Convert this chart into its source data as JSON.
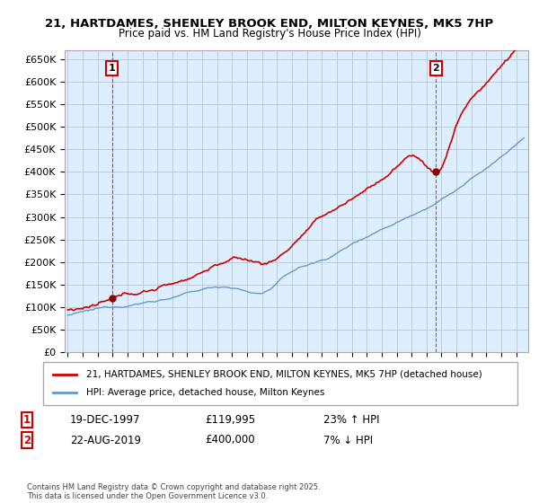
{
  "title1": "21, HARTDAMES, SHENLEY BROOK END, MILTON KEYNES, MK5 7HP",
  "title2": "Price paid vs. HM Land Registry's House Price Index (HPI)",
  "ylabel_ticks": [
    "£0",
    "£50K",
    "£100K",
    "£150K",
    "£200K",
    "£250K",
    "£300K",
    "£350K",
    "£400K",
    "£450K",
    "£500K",
    "£550K",
    "£600K",
    "£650K"
  ],
  "ytick_values": [
    0,
    50000,
    100000,
    150000,
    200000,
    250000,
    300000,
    350000,
    400000,
    450000,
    500000,
    550000,
    600000,
    650000
  ],
  "ylim": [
    0,
    670000
  ],
  "xlim_start": 1994.8,
  "xlim_end": 2025.8,
  "legend_line1": "21, HARTDAMES, SHENLEY BROOK END, MILTON KEYNES, MK5 7HP (detached house)",
  "legend_line2": "HPI: Average price, detached house, Milton Keynes",
  "line_color_red": "#cc0000",
  "line_color_blue": "#6699cc",
  "dashed_color": "#cc0000",
  "plot_bg_color": "#ddeeff",
  "marker1_x": 1997.97,
  "marker1_label": "1",
  "marker2_x": 2019.64,
  "marker2_label": "2",
  "sale1_date": "19-DEC-1997",
  "sale1_price": "£119,995",
  "sale1_hpi": "23% ↑ HPI",
  "sale2_date": "22-AUG-2019",
  "sale2_price": "£400,000",
  "sale2_hpi": "7% ↓ HPI",
  "footnote": "Contains HM Land Registry data © Crown copyright and database right 2025.\nThis data is licensed under the Open Government Licence v3.0.",
  "background_color": "#ffffff",
  "grid_color": "#bbccdd"
}
